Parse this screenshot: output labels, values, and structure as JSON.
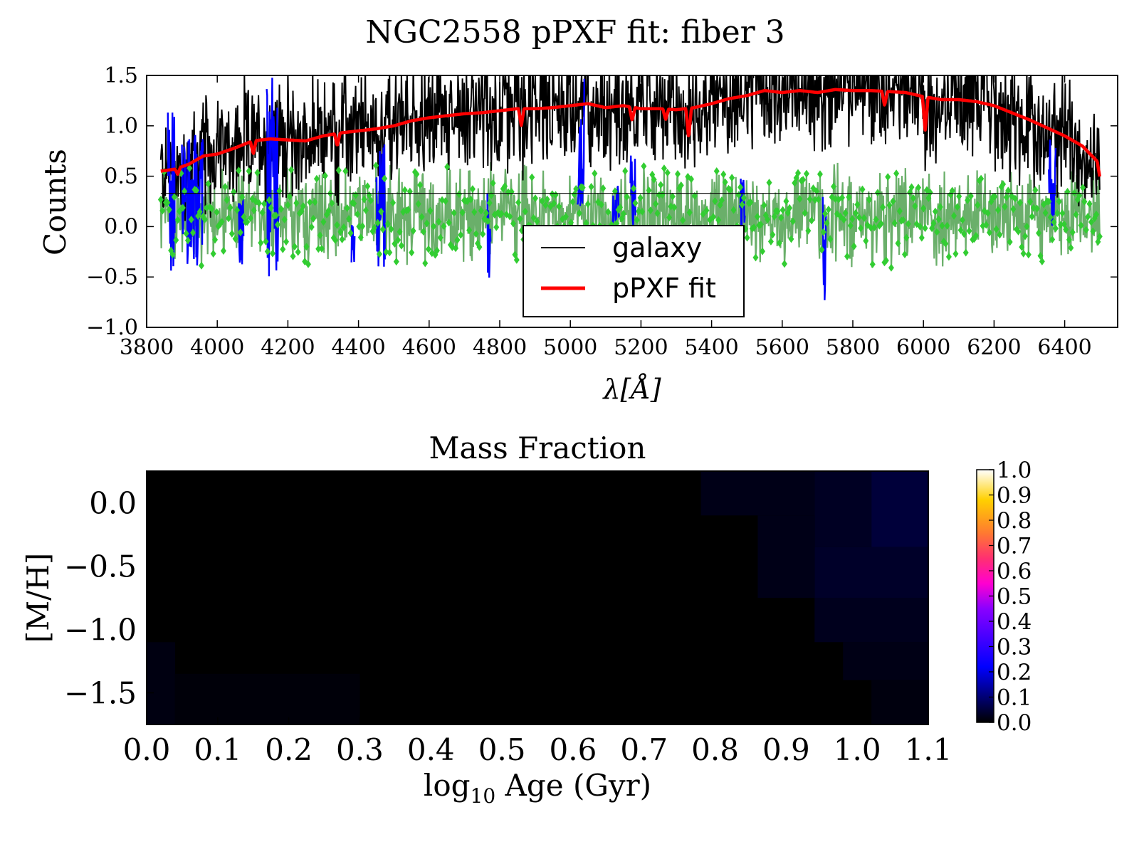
{
  "figure": {
    "title": "NGC2558 pPXF fit: fiber 3"
  },
  "colors": {
    "galaxy": "#000000",
    "fit": "#ff0000",
    "residual_line": "#6aaf6a",
    "residual_marker": "#32cd32",
    "masked": "#0000ff",
    "zero_line": "#000000"
  },
  "chart_data": [
    {
      "type": "line",
      "xlabel": "λ[Å]",
      "ylabel": "Counts",
      "xlim": [
        3800,
        6550
      ],
      "ylim": [
        -1.0,
        1.5
      ],
      "xticks": [
        3800,
        4000,
        4200,
        4400,
        4600,
        4800,
        5000,
        5200,
        5400,
        5600,
        5800,
        6000,
        6200,
        6400
      ],
      "yticks": [
        -1.0,
        -0.5,
        0.0,
        0.5,
        1.0,
        1.5
      ],
      "ytick_labels": [
        "−1.0",
        "−0.5",
        "0.0",
        "0.5",
        "1.0",
        "1.5"
      ],
      "grid": false,
      "legend": {
        "position": "lower-center",
        "entries": [
          "galaxy",
          "pPXF fit"
        ]
      },
      "reference_line": {
        "y": 0.33,
        "x_range": [
          3840,
          6500
        ]
      },
      "fit_anchors": {
        "x": [
          3840,
          3880,
          3920,
          3960,
          4000,
          4050,
          4100,
          4150,
          4200,
          4250,
          4300,
          4350,
          4400,
          4450,
          4500,
          4550,
          4600,
          4650,
          4700,
          4750,
          4800,
          4850,
          4900,
          4950,
          5000,
          5050,
          5100,
          5150,
          5200,
          5250,
          5300,
          5350,
          5400,
          5450,
          5500,
          5550,
          5600,
          5650,
          5700,
          5750,
          5800,
          5850,
          5900,
          5950,
          6000,
          6050,
          6100,
          6150,
          6200,
          6250,
          6300,
          6350,
          6400,
          6450,
          6500
        ],
        "y": [
          0.55,
          0.57,
          0.62,
          0.7,
          0.72,
          0.78,
          0.85,
          0.87,
          0.86,
          0.85,
          0.9,
          0.93,
          0.95,
          0.97,
          1.0,
          1.05,
          1.08,
          1.1,
          1.12,
          1.13,
          1.15,
          1.17,
          1.17,
          1.18,
          1.2,
          1.22,
          1.18,
          1.2,
          1.17,
          1.17,
          1.16,
          1.18,
          1.22,
          1.27,
          1.3,
          1.35,
          1.33,
          1.35,
          1.33,
          1.36,
          1.35,
          1.35,
          1.34,
          1.33,
          1.29,
          1.26,
          1.26,
          1.24,
          1.2,
          1.13,
          1.06,
          0.98,
          0.9,
          0.8,
          0.62
        ]
      },
      "fit_dips": [
        {
          "x": 3888,
          "y": 0.52
        },
        {
          "x": 4102,
          "y": 0.72
        },
        {
          "x": 4340,
          "y": 0.8
        },
        {
          "x": 4861,
          "y": 1.0
        },
        {
          "x": 5175,
          "y": 1.05
        },
        {
          "x": 5270,
          "y": 1.06
        },
        {
          "x": 5335,
          "y": 0.88
        },
        {
          "x": 5890,
          "y": 1.2
        },
        {
          "x": 6005,
          "y": 0.95
        },
        {
          "x": 6500,
          "y": 0.48
        }
      ],
      "galaxy_envelope": {
        "center_offset": 0.0,
        "noise_amplitude": 0.55,
        "min": -0.05,
        "max": 1.5
      },
      "residual_envelope": {
        "center": 0.12,
        "noise_amplitude": 0.35,
        "min": -0.88,
        "max": 1.45
      },
      "masked_regions": [
        {
          "x": [
            3860,
            3880
          ],
          "low": -0.45,
          "high": 1.3
        },
        {
          "x": [
            3900,
            3960
          ],
          "low": -0.4,
          "high": 0.95
        },
        {
          "x": [
            4060,
            4075
          ],
          "low": -0.4,
          "high": 0.5
        },
        {
          "x": [
            4140,
            4175
          ],
          "low": -0.5,
          "high": 1.5
        },
        {
          "x": [
            4380,
            4390
          ],
          "low": -0.4,
          "high": 0.4
        },
        {
          "x": [
            4450,
            4475
          ],
          "low": -0.45,
          "high": 0.85
        },
        {
          "x": [
            4765,
            4775
          ],
          "low": -0.72,
          "high": 0.5
        },
        {
          "x": [
            5020,
            5040
          ],
          "low": 0.0,
          "high": 1.5
        },
        {
          "x": [
            5120,
            5140
          ],
          "low": 0.0,
          "high": 0.45
        },
        {
          "x": [
            5170,
            5185
          ],
          "low": 0.0,
          "high": 0.85
        },
        {
          "x": [
            5480,
            5495
          ],
          "low": 0.0,
          "high": 0.55
        },
        {
          "x": [
            5715,
            5725
          ],
          "low": -0.9,
          "high": 0.3
        },
        {
          "x": [
            6355,
            6375
          ],
          "low": 0.0,
          "high": 0.9
        }
      ]
    },
    {
      "type": "heatmap",
      "title": "Mass Fraction",
      "xlabel": "log10 Age (Gyr)",
      "xlabel_main": "log",
      "xlabel_sub": "10",
      "xlabel_rest": " Age (Gyr)",
      "ylabel": "[M/H]",
      "xlim": [
        0.0,
        1.1
      ],
      "ylim": [
        -1.75,
        0.25
      ],
      "xticks": [
        0.0,
        0.1,
        0.2,
        0.3,
        0.4,
        0.5,
        0.6,
        0.7,
        0.8,
        0.9,
        1.0,
        1.1
      ],
      "xtick_labels": [
        "0.0",
        "0.1",
        "0.2",
        "0.3",
        "0.4",
        "0.5",
        "0.6",
        "0.7",
        "0.8",
        "0.9",
        "1.0",
        "1.1"
      ],
      "yticks": [
        0.0,
        -0.5,
        -1.0,
        -1.5
      ],
      "ytick_labels": [
        "0.0",
        "−0.5",
        "−1.0",
        "−1.5"
      ],
      "colormap": "gnuplot2",
      "colorbar": {
        "range": [
          0.0,
          1.0
        ],
        "ticks": [
          0.0,
          0.1,
          0.2,
          0.3,
          0.4,
          0.5,
          0.6,
          0.7,
          0.8,
          0.9,
          1.0
        ],
        "tick_labels": [
          "0.0",
          "0.1",
          "0.2",
          "0.3",
          "0.4",
          "0.5",
          "0.6",
          "0.7",
          "0.8",
          "0.9",
          "1.0"
        ],
        "stops": [
          {
            "v": 0.0,
            "color": "#000000"
          },
          {
            "v": 0.22,
            "color": "#0000ff"
          },
          {
            "v": 0.45,
            "color": "#8a00ff"
          },
          {
            "v": 0.55,
            "color": "#ff00d0"
          },
          {
            "v": 0.65,
            "color": "#ff3070"
          },
          {
            "v": 0.75,
            "color": "#ff7a30"
          },
          {
            "v": 0.88,
            "color": "#ffd000"
          },
          {
            "v": 1.0,
            "color": "#ffffff"
          }
        ]
      },
      "cells": [
        {
          "x0": 0.0,
          "x1": 0.04,
          "y0": -1.75,
          "y1": -1.1,
          "value": 0.015
        },
        {
          "x0": 0.04,
          "x1": 0.3,
          "y0": -1.75,
          "y1": -1.35,
          "value": 0.008
        },
        {
          "x0": 0.78,
          "x1": 0.94,
          "y0": -0.1,
          "y1": 0.25,
          "value": 0.02
        },
        {
          "x0": 0.94,
          "x1": 1.02,
          "y0": -0.35,
          "y1": 0.25,
          "value": 0.03
        },
        {
          "x0": 1.02,
          "x1": 1.1,
          "y0": -0.35,
          "y1": 0.25,
          "value": 0.05
        },
        {
          "x0": 0.94,
          "x1": 1.1,
          "y0": -0.75,
          "y1": -0.35,
          "value": 0.035
        },
        {
          "x0": 0.86,
          "x1": 0.94,
          "y0": -0.75,
          "y1": -0.1,
          "value": 0.02
        },
        {
          "x0": 0.94,
          "x1": 1.1,
          "y0": -1.1,
          "y1": -0.75,
          "value": 0.025
        },
        {
          "x0": 0.98,
          "x1": 1.1,
          "y0": -1.4,
          "y1": -1.1,
          "value": 0.018
        },
        {
          "x0": 1.02,
          "x1": 1.1,
          "y0": -1.75,
          "y1": -1.4,
          "value": 0.012
        }
      ]
    }
  ]
}
